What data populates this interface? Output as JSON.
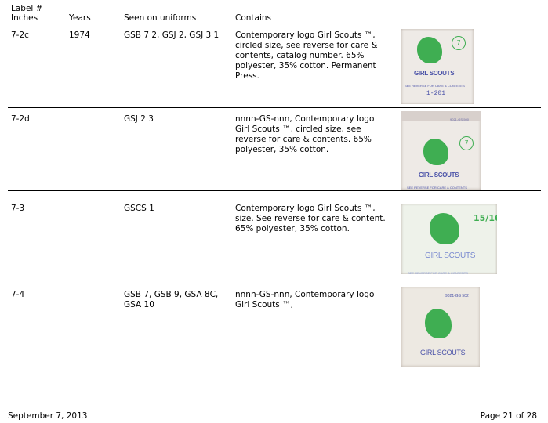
{
  "header": {
    "label_line1": "Label #",
    "label_line2": "Inches",
    "years": "Years",
    "seen": "Seen on uniforms",
    "contains": "Contains"
  },
  "rows": [
    {
      "label": "7-2c",
      "years": "1974",
      "seen": "GSB 7 2, GSJ 2, GSJ 3 1",
      "contains": "Contemporary logo Girl Scouts ™, circled size, see reverse for care & contents, catalog number. 65% polyester, 35% cotton. Permanent Press.",
      "image": {
        "brand": "GIRL SCOUTS",
        "note": "SEE REVERSE FOR CARE & CONTENTS",
        "size": "7",
        "catalog": "1-201"
      }
    },
    {
      "label": "7-2d",
      "years": "",
      "seen": "GSJ 2 3",
      "contains": "nnnn-GS-nnn, Contemporary logo Girl Scouts ™, circled size, see reverse for care & contents. 65% polyester, 35% cotton.",
      "image": {
        "brand": "GIRL SCOUTS",
        "note": "SEE REVERSE FOR CARE & CONTENTS",
        "size": "7",
        "code": "9021-GS-500"
      }
    },
    {
      "label": "7-3",
      "years": "",
      "seen": "GSCS 1",
      "contains": "Contemporary logo Girl Scouts ™, size. See reverse for care & content. 65% polyester, 35% cotton.",
      "image": {
        "brand": "GIRL SCOUTS",
        "note": "SEE REVERSE FOR CARE & CONTENTS",
        "size": "15/16"
      }
    },
    {
      "label": "7-4",
      "years": "",
      "seen": "GSB 7, GSB 9, GSA 8C, GSA 10",
      "contains": "nnnn-GS-nnn, Contemporary logo Girl Scouts ™,",
      "image": {
        "brand": "GIRL SCOUTS",
        "code": "9021-GS 502"
      }
    }
  ],
  "footer": {
    "date": "September 7, 2013",
    "page": "Page 21 of 28"
  }
}
